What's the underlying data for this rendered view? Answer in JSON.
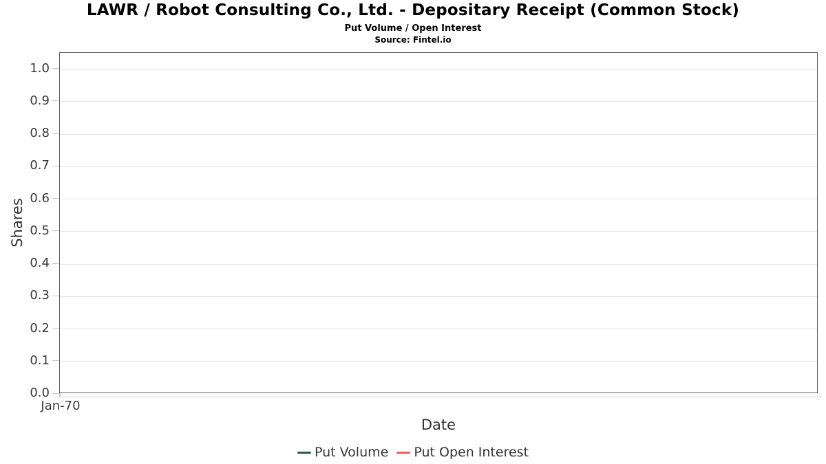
{
  "chart_data": {
    "type": "line",
    "title": "LAWR / Robot Consulting Co., Ltd. - Depositary Receipt (Common Stock)",
    "subtitle": "Put Volume / Open Interest",
    "source": "Source: Fintel.io",
    "xlabel": "Date",
    "ylabel": "Shares",
    "x_tick_labels": [
      "Jan-70"
    ],
    "y_ticks": [
      0,
      0.1,
      0.2,
      0.3,
      0.4,
      0.5,
      0.6,
      0.7,
      0.8,
      0.9,
      1.0
    ],
    "y_tick_labels": [
      "0.0",
      "0.1",
      "0.2",
      "0.3",
      "0.4",
      "0.5",
      "0.6",
      "0.7",
      "0.8",
      "0.9",
      "1.0"
    ],
    "ylim": [
      0,
      1.05
    ],
    "grid": true,
    "legend_position": "bottom",
    "series": [
      {
        "name": "Put Volume",
        "color": "#2d5c3c",
        "values": []
      },
      {
        "name": "Put Open Interest",
        "color": "#f45b5b",
        "values": []
      }
    ]
  },
  "colors": {
    "grid": "#e4e4e4",
    "plot_border": "#5a5a5a",
    "tick": "#c6c6c6",
    "axis_text": "#383838",
    "label_text": "#333333"
  }
}
